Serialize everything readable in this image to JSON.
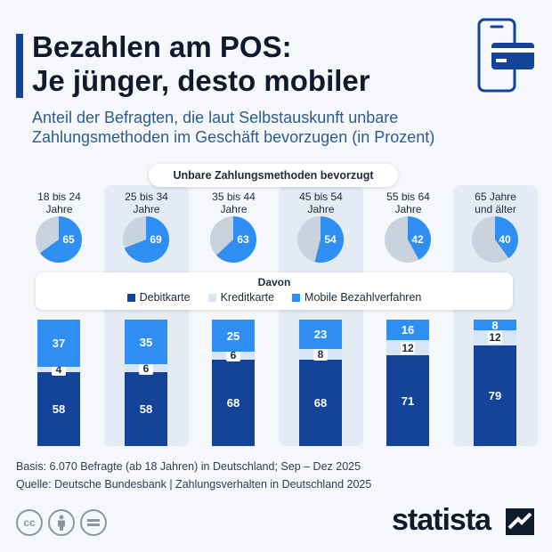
{
  "header": {
    "title": "Bezahlen am POS:\nJe jünger, desto mobiler",
    "subtitle": "Anteil der Befragten, die laut Selbstauskunft unbare Zahlungsmethoden im Geschäft bevorzugen (in Prozent)"
  },
  "pill_label": "Unbare Zahlungsmethoden bevorzugt",
  "legend": {
    "title": "Davon",
    "items": [
      "Debitkarte",
      "Kreditkarte",
      "Mobile Bezahlverfahren"
    ]
  },
  "colors": {
    "debit": "#14449a",
    "credit": "#d6e6f7",
    "mobile": "#2f8ef2",
    "pie_rest": "#c9d3dd"
  },
  "chart_data": {
    "type": "bar",
    "stacked": true,
    "categories": [
      "18 bis 24\nJahre",
      "25 bis 34\nJahre",
      "35 bis 44\nJahre",
      "45 bis 54\nJahre",
      "55 bis 64\nJahre",
      "65 Jahre\nund älter"
    ],
    "pie_values": [
      65,
      69,
      63,
      54,
      42,
      40
    ],
    "series": [
      {
        "name": "Debitkarte",
        "values": [
          58,
          58,
          68,
          68,
          71,
          79
        ]
      },
      {
        "name": "Kreditkarte",
        "values": [
          4,
          6,
          6,
          8,
          12,
          12
        ]
      },
      {
        "name": "Mobile Bezahlverfahren",
        "values": [
          37,
          35,
          25,
          23,
          16,
          8
        ]
      }
    ],
    "ylim": [
      0,
      100
    ]
  },
  "footer": {
    "basis": "Basis: 6.070 Befragte (ab 18 Jahren) in Deutschland; Sep – Dez 2025",
    "source": "Quelle: Deutsche Bundesbank | Zahlungsverhalten in Deutschland 2025"
  },
  "brand": "statista"
}
